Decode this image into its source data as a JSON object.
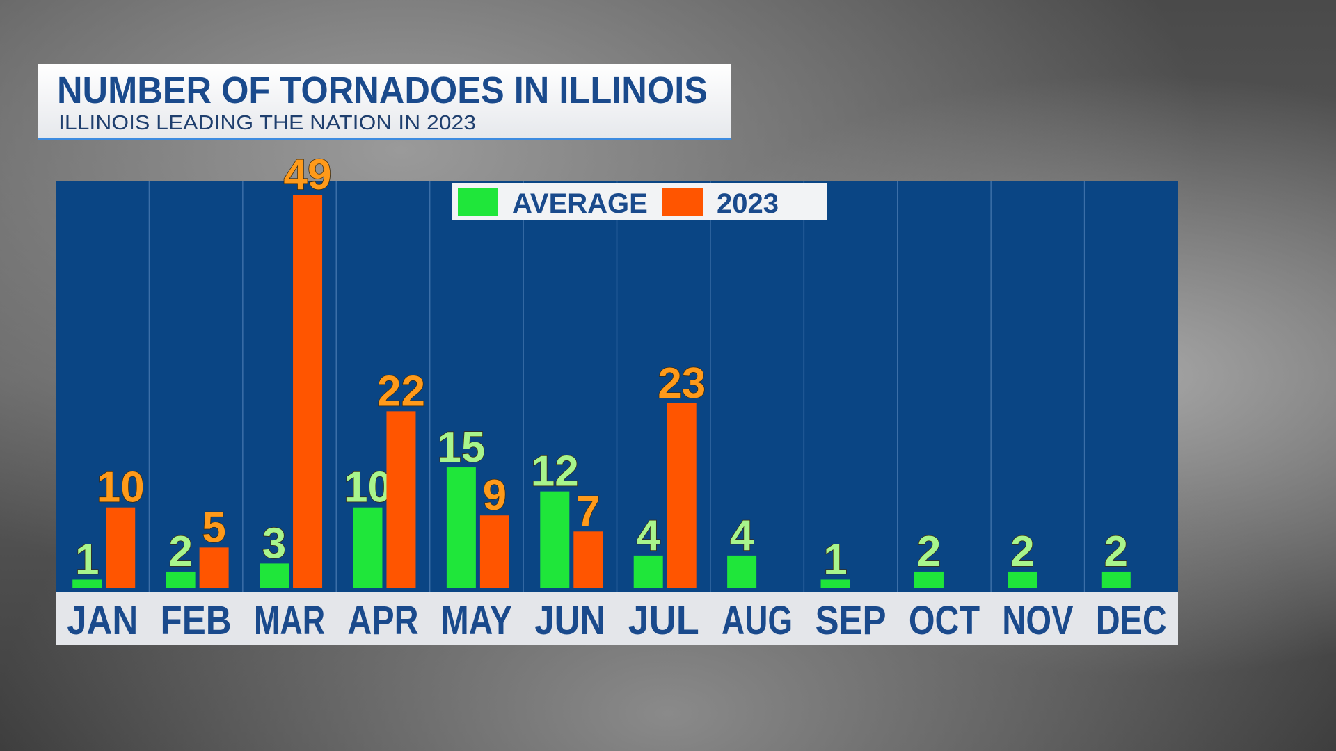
{
  "chart_data": {
    "type": "bar",
    "title": "NUMBER OF TORNADOES IN ILLINOIS",
    "subtitle": "ILLINOIS LEADING THE NATION IN 2023",
    "categories": [
      "JAN",
      "FEB",
      "MAR",
      "APR",
      "MAY",
      "JUN",
      "JUL",
      "AUG",
      "SEP",
      "OCT",
      "NOV",
      "DEC"
    ],
    "series": [
      {
        "name": "AVERAGE",
        "color": "#1fe63a",
        "values": [
          1,
          2,
          3,
          10,
          15,
          12,
          4,
          4,
          1,
          2,
          2,
          2
        ]
      },
      {
        "name": "2023",
        "color": "#ff5500",
        "values": [
          10,
          5,
          49,
          22,
          9,
          7,
          23,
          null,
          null,
          null,
          null,
          null
        ]
      }
    ]
  }
}
